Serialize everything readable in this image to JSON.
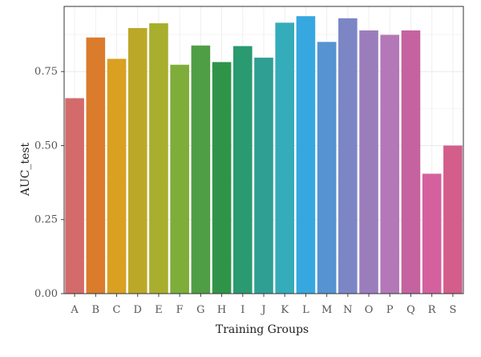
{
  "chart_data": {
    "type": "bar",
    "categories": [
      "A",
      "B",
      "C",
      "D",
      "E",
      "F",
      "G",
      "H",
      "I",
      "J",
      "K",
      "L",
      "M",
      "N",
      "O",
      "P",
      "Q",
      "R",
      "S"
    ],
    "values": [
      0.66,
      0.865,
      0.793,
      0.897,
      0.913,
      0.773,
      0.838,
      0.782,
      0.836,
      0.797,
      0.915,
      0.937,
      0.85,
      0.93,
      0.889,
      0.874,
      0.889,
      0.405,
      0.5
    ],
    "colors": [
      "#D46A6A",
      "#DB7B2C",
      "#D9A021",
      "#BBA828",
      "#A8AE2D",
      "#7EAD3A",
      "#4F9E45",
      "#2F9448",
      "#2A9A70",
      "#2F9F93",
      "#34ACB9",
      "#36A8DF",
      "#5593D2",
      "#7C86C5",
      "#9B7DBC",
      "#B477B8",
      "#C4639F",
      "#D4619E",
      "#D35D8B"
    ],
    "title": "",
    "xlabel": "Training Groups",
    "ylabel": "AUC_test",
    "ylim": [
      0,
      0.97
    ],
    "yticks": [
      0.0,
      0.25,
      0.5,
      0.75
    ],
    "ytick_labels": [
      "0.00",
      "0.25",
      "0.50",
      "0.75"
    ],
    "grid": true,
    "legend": "none"
  }
}
